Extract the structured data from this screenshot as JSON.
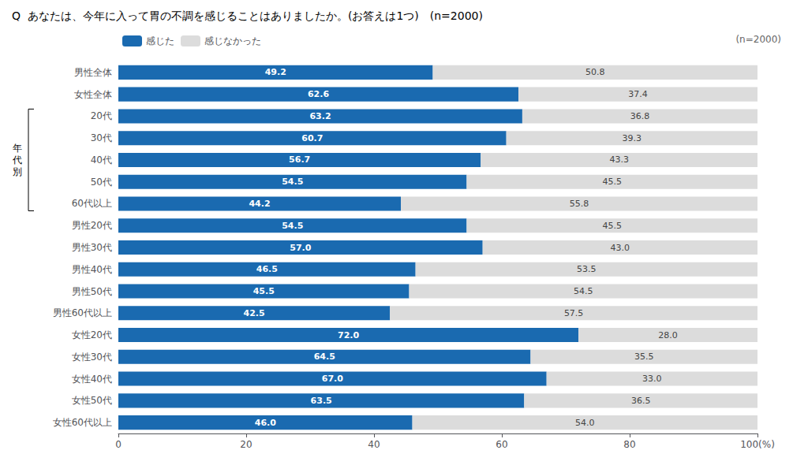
{
  "chart_data": {
    "type": "bar",
    "orientation": "horizontal",
    "stacked": true,
    "title": "Q  あなたは、今年に入って胃の不調を感じることはありましたか。(お答えは1つ)　(n=2000)",
    "categories": [
      "男性全体",
      "女性全体",
      "20代",
      "30代",
      "40代",
      "50代",
      "60代以上",
      "男性20代",
      "男性30代",
      "男性40代",
      "男性50代",
      "男性60代以上",
      "女性20代",
      "女性30代",
      "女性40代",
      "女性50代",
      "女性60代以上"
    ],
    "series": [
      {
        "name": "感じた",
        "color": "#1a6ab0",
        "values": [
          49.2,
          62.6,
          63.2,
          60.7,
          56.7,
          54.5,
          44.2,
          54.5,
          57.0,
          46.5,
          45.5,
          42.5,
          72.0,
          64.5,
          67.0,
          63.5,
          46.0
        ],
        "value_labels": [
          "49.2",
          "62.6",
          "63.2",
          "60.7",
          "56.7",
          "54.5",
          "44.2",
          "54.5",
          "57.0",
          "46.5",
          "45.5",
          "42.5",
          "72.0",
          "64.5",
          "67.0",
          "63.5",
          "46.0"
        ]
      },
      {
        "name": "感じなかった",
        "color": "#dcdcdc",
        "values": [
          50.8,
          37.4,
          36.8,
          39.3,
          43.3,
          45.5,
          55.8,
          45.5,
          43.0,
          53.5,
          54.5,
          57.5,
          28.0,
          35.5,
          33.0,
          36.5,
          54.0
        ],
        "value_labels": [
          "50.8",
          "37.4",
          "36.8",
          "39.3",
          "43.3",
          "45.5",
          "55.8",
          "45.5",
          "43.0",
          "53.5",
          "54.5",
          "57.5",
          "28.0",
          "35.5",
          "33.0",
          "36.5",
          "54.0"
        ]
      }
    ],
    "xlim": [
      0,
      100
    ],
    "xticks": [
      0,
      20,
      40,
      60,
      80,
      {
        "value": 100,
        "label": "100(%)"
      }
    ],
    "grid": false,
    "legend": "upper left",
    "data_labels": true,
    "annotations": [
      {
        "text": "(n=2000)"
      },
      {
        "text": "年\n代\n別",
        "from": "20代",
        "to": "60代以上"
      }
    ]
  }
}
